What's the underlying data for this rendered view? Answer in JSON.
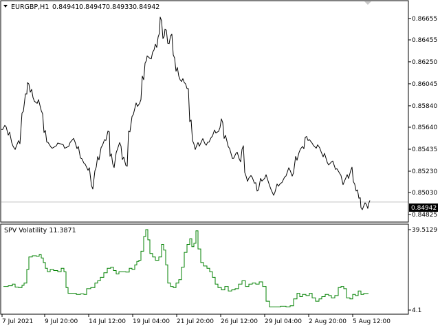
{
  "window": {
    "symbol_label": "EURGBP,H1",
    "ohlc": [
      "0.84941",
      "0.84947",
      "0.84933",
      "0.84942"
    ]
  },
  "indicator": {
    "label": "SPV Volatility 11.3871",
    "scale_top": "39.5129",
    "scale_bottom": "4.1"
  },
  "price_axis": {
    "labels": [
      "0.86655",
      "0.86455",
      "0.86250",
      "0.86045",
      "0.85840",
      "0.85640",
      "0.85435",
      "0.85230",
      "0.85030",
      "0.84825"
    ],
    "current_price": "0.84942"
  },
  "time_axis": {
    "labels": [
      "7 Jul 2021",
      "9 Jul 20:00",
      "14 Jul 12:00",
      "19 Jul 04:00",
      "21 Jul 20:00",
      "26 Jul 12:00",
      "29 Jul 04:00",
      "2 Aug 20:00",
      "5 Aug 12:00"
    ]
  },
  "colors": {
    "price_line": "#000000",
    "indicator_line": "#008000",
    "current_price_line": "#c0c0c0",
    "price_tag_bg": "#000000",
    "price_tag_text": "#ffffff",
    "frame": "#000000"
  },
  "chart_data": [
    {
      "type": "line",
      "name": "EURGBP,H1",
      "x": [
        "7 Jul 2021",
        "9 Jul 20:00",
        "14 Jul 12:00",
        "19 Jul 04:00",
        "21 Jul 20:00",
        "26 Jul 12:00",
        "29 Jul 04:00",
        "2 Aug 20:00",
        "5 Aug 12:00"
      ],
      "ylim": [
        0.848,
        0.8675
      ],
      "points": [
        [
          0,
          0.8562
        ],
        [
          5,
          0.8565
        ],
        [
          10,
          0.8558
        ],
        [
          15,
          0.8548
        ],
        [
          20,
          0.8545
        ],
        [
          25,
          0.855
        ],
        [
          30,
          0.8578
        ],
        [
          35,
          0.8595
        ],
        [
          38,
          0.8605
        ],
        [
          42,
          0.8598
        ],
        [
          46,
          0.859
        ],
        [
          52,
          0.8588
        ],
        [
          58,
          0.8578
        ],
        [
          62,
          0.856
        ],
        [
          66,
          0.855
        ],
        [
          72,
          0.8545
        ],
        [
          80,
          0.8548
        ],
        [
          90,
          0.8546
        ],
        [
          98,
          0.8548
        ],
        [
          105,
          0.8552
        ],
        [
          110,
          0.8545
        ],
        [
          115,
          0.8535
        ],
        [
          120,
          0.853
        ],
        [
          126,
          0.8525
        ],
        [
          131,
          0.8508
        ],
        [
          136,
          0.8525
        ],
        [
          140,
          0.8535
        ],
        [
          145,
          0.8546
        ],
        [
          150,
          0.8552
        ],
        [
          155,
          0.856
        ],
        [
          158,
          0.8538
        ],
        [
          162,
          0.8528
        ],
        [
          167,
          0.8542
        ],
        [
          172,
          0.8548
        ],
        [
          176,
          0.8535
        ],
        [
          181,
          0.8528
        ],
        [
          185,
          0.856
        ],
        [
          190,
          0.8575
        ],
        [
          196,
          0.8585
        ],
        [
          201,
          0.8588
        ],
        [
          205,
          0.861
        ],
        [
          209,
          0.8625
        ],
        [
          212,
          0.863
        ],
        [
          216,
          0.8628
        ],
        [
          220,
          0.8635
        ],
        [
          224,
          0.864
        ],
        [
          228,
          0.865
        ],
        [
          231,
          0.8665
        ],
        [
          235,
          0.8648
        ],
        [
          238,
          0.8655
        ],
        [
          242,
          0.8642
        ],
        [
          246,
          0.865
        ],
        [
          250,
          0.863
        ],
        [
          254,
          0.8618
        ],
        [
          258,
          0.861
        ],
        [
          262,
          0.8608
        ],
        [
          266,
          0.8605
        ],
        [
          270,
          0.86
        ],
        [
          274,
          0.857
        ],
        [
          278,
          0.855
        ],
        [
          282,
          0.8545
        ],
        [
          286,
          0.8548
        ],
        [
          291,
          0.8552
        ],
        [
          296,
          0.8548
        ],
        [
          300,
          0.855
        ],
        [
          305,
          0.8555
        ],
        [
          310,
          0.856
        ],
        [
          316,
          0.8562
        ],
        [
          320,
          0.857
        ],
        [
          324,
          0.8555
        ],
        [
          330,
          0.8545
        ],
        [
          336,
          0.8535
        ],
        [
          341,
          0.854
        ],
        [
          346,
          0.8533
        ],
        [
          350,
          0.8545
        ],
        [
          354,
          0.852
        ],
        [
          358,
          0.8515
        ],
        [
          363,
          0.8518
        ],
        [
          368,
          0.8512
        ],
        [
          372,
          0.8505
        ],
        [
          377,
          0.8515
        ],
        [
          383,
          0.8518
        ],
        [
          390,
          0.8508
        ],
        [
          396,
          0.8502
        ],
        [
          401,
          0.851
        ],
        [
          406,
          0.8512
        ],
        [
          412,
          0.8518
        ],
        [
          418,
          0.8525
        ],
        [
          423,
          0.852
        ],
        [
          428,
          0.8535
        ],
        [
          433,
          0.8542
        ],
        [
          438,
          0.8545
        ],
        [
          442,
          0.8555
        ],
        [
          446,
          0.8552
        ],
        [
          452,
          0.8548
        ],
        [
          458,
          0.8546
        ],
        [
          463,
          0.8543
        ],
        [
          468,
          0.8538
        ],
        [
          474,
          0.853
        ],
        [
          480,
          0.8532
        ],
        [
          486,
          0.8525
        ],
        [
          492,
          0.852
        ],
        [
          497,
          0.8512
        ],
        [
          503,
          0.8518
        ],
        [
          508,
          0.8525
        ],
        [
          512,
          0.8512
        ],
        [
          516,
          0.8505
        ],
        [
          520,
          0.8498
        ],
        [
          523,
          0.8488
        ],
        [
          527,
          0.8492
        ],
        [
          531,
          0.849
        ],
        [
          534,
          0.8494
        ]
      ]
    },
    {
      "type": "line",
      "name": "SPV Volatility",
      "x": [
        "7 Jul 2021",
        "9 Jul 20:00",
        "14 Jul 12:00",
        "19 Jul 04:00",
        "21 Jul 20:00",
        "26 Jul 12:00",
        "29 Jul 04:00",
        "2 Aug 20:00",
        "5 Aug 12:00"
      ],
      "ylim": [
        4.1,
        39.5129
      ],
      "points": [
        [
          3,
          14.5
        ],
        [
          10,
          14.8
        ],
        [
          16,
          15.5
        ],
        [
          20,
          14.2
        ],
        [
          25,
          14.0
        ],
        [
          30,
          15.0
        ],
        [
          33,
          16.0
        ],
        [
          37,
          22.0
        ],
        [
          40,
          27.5
        ],
        [
          45,
          28.0
        ],
        [
          51,
          27.8
        ],
        [
          55,
          28.5
        ],
        [
          58,
          27.0
        ],
        [
          61,
          25.0
        ],
        [
          64,
          22.5
        ],
        [
          67,
          21.0
        ],
        [
          71,
          22.0
        ],
        [
          76,
          21.5
        ],
        [
          82,
          21.0
        ],
        [
          87,
          22.5
        ],
        [
          91,
          21.0
        ],
        [
          94,
          14.0
        ],
        [
          97,
          11.5
        ],
        [
          102,
          11.5
        ],
        [
          109,
          11.0
        ],
        [
          115,
          11.2
        ],
        [
          120,
          11.0
        ],
        [
          124,
          13.5
        ],
        [
          130,
          14.0
        ],
        [
          136,
          16.0
        ],
        [
          140,
          17.0
        ],
        [
          144,
          18.5
        ],
        [
          149,
          20.5
        ],
        [
          154,
          22.5
        ],
        [
          159,
          23.0
        ],
        [
          163,
          21.5
        ],
        [
          167,
          20.0
        ],
        [
          171,
          21.0
        ],
        [
          176,
          21.0
        ],
        [
          181,
          20.8
        ],
        [
          186,
          22.5
        ],
        [
          190,
          22.0
        ],
        [
          194,
          24.0
        ],
        [
          197,
          25.5
        ],
        [
          200,
          26.0
        ],
        [
          203,
          30.0
        ],
        [
          207,
          36.5
        ],
        [
          210,
          39.5
        ],
        [
          213,
          35.0
        ],
        [
          216,
          29.0
        ],
        [
          220,
          27.5
        ],
        [
          224,
          26.0
        ],
        [
          229,
          27.5
        ],
        [
          233,
          33.0
        ],
        [
          236,
          30.5
        ],
        [
          239,
          24.0
        ],
        [
          242,
          16.0
        ],
        [
          246,
          14.5
        ],
        [
          250,
          14.0
        ],
        [
          254,
          16.0
        ],
        [
          258,
          17.5
        ],
        [
          262,
          23.0
        ],
        [
          266,
          29.5
        ],
        [
          270,
          33.0
        ],
        [
          274,
          35.5
        ],
        [
          277,
          32.0
        ],
        [
          280,
          33.5
        ],
        [
          283,
          39.0
        ],
        [
          286,
          31.0
        ],
        [
          290,
          25.0
        ],
        [
          294,
          23.5
        ],
        [
          299,
          22.5
        ],
        [
          303,
          21.0
        ],
        [
          307,
          18.5
        ],
        [
          311,
          15.5
        ],
        [
          315,
          14.0
        ],
        [
          320,
          13.0
        ],
        [
          325,
          14.5
        ],
        [
          330,
          12.5
        ],
        [
          335,
          13.0
        ],
        [
          340,
          13.5
        ],
        [
          345,
          15.5
        ],
        [
          350,
          17.0
        ],
        [
          355,
          14.5
        ],
        [
          360,
          15.5
        ],
        [
          365,
          16.0
        ],
        [
          370,
          15.5
        ],
        [
          375,
          16.5
        ],
        [
          380,
          14.5
        ],
        [
          385,
          8.0
        ],
        [
          390,
          5.5
        ],
        [
          398,
          5.5
        ],
        [
          406,
          5.8
        ],
        [
          414,
          5.5
        ],
        [
          420,
          6.0
        ],
        [
          425,
          9.0
        ],
        [
          430,
          11.5
        ],
        [
          434,
          10.0
        ],
        [
          438,
          11.0
        ],
        [
          443,
          10.5
        ],
        [
          448,
          11.5
        ],
        [
          452,
          9.5
        ],
        [
          457,
          8.0
        ],
        [
          462,
          9.0
        ],
        [
          466,
          10.0
        ],
        [
          471,
          11.0
        ],
        [
          476,
          10.5
        ],
        [
          480,
          9.5
        ],
        [
          485,
          10.5
        ],
        [
          490,
          14.0
        ],
        [
          494,
          14.5
        ],
        [
          498,
          13.5
        ],
        [
          502,
          9.5
        ],
        [
          507,
          9.0
        ],
        [
          511,
          11.0
        ],
        [
          515,
          10.5
        ],
        [
          519,
          12.5
        ],
        [
          523,
          11.0
        ],
        [
          527,
          11.4
        ],
        [
          534,
          11.3871
        ]
      ]
    }
  ]
}
